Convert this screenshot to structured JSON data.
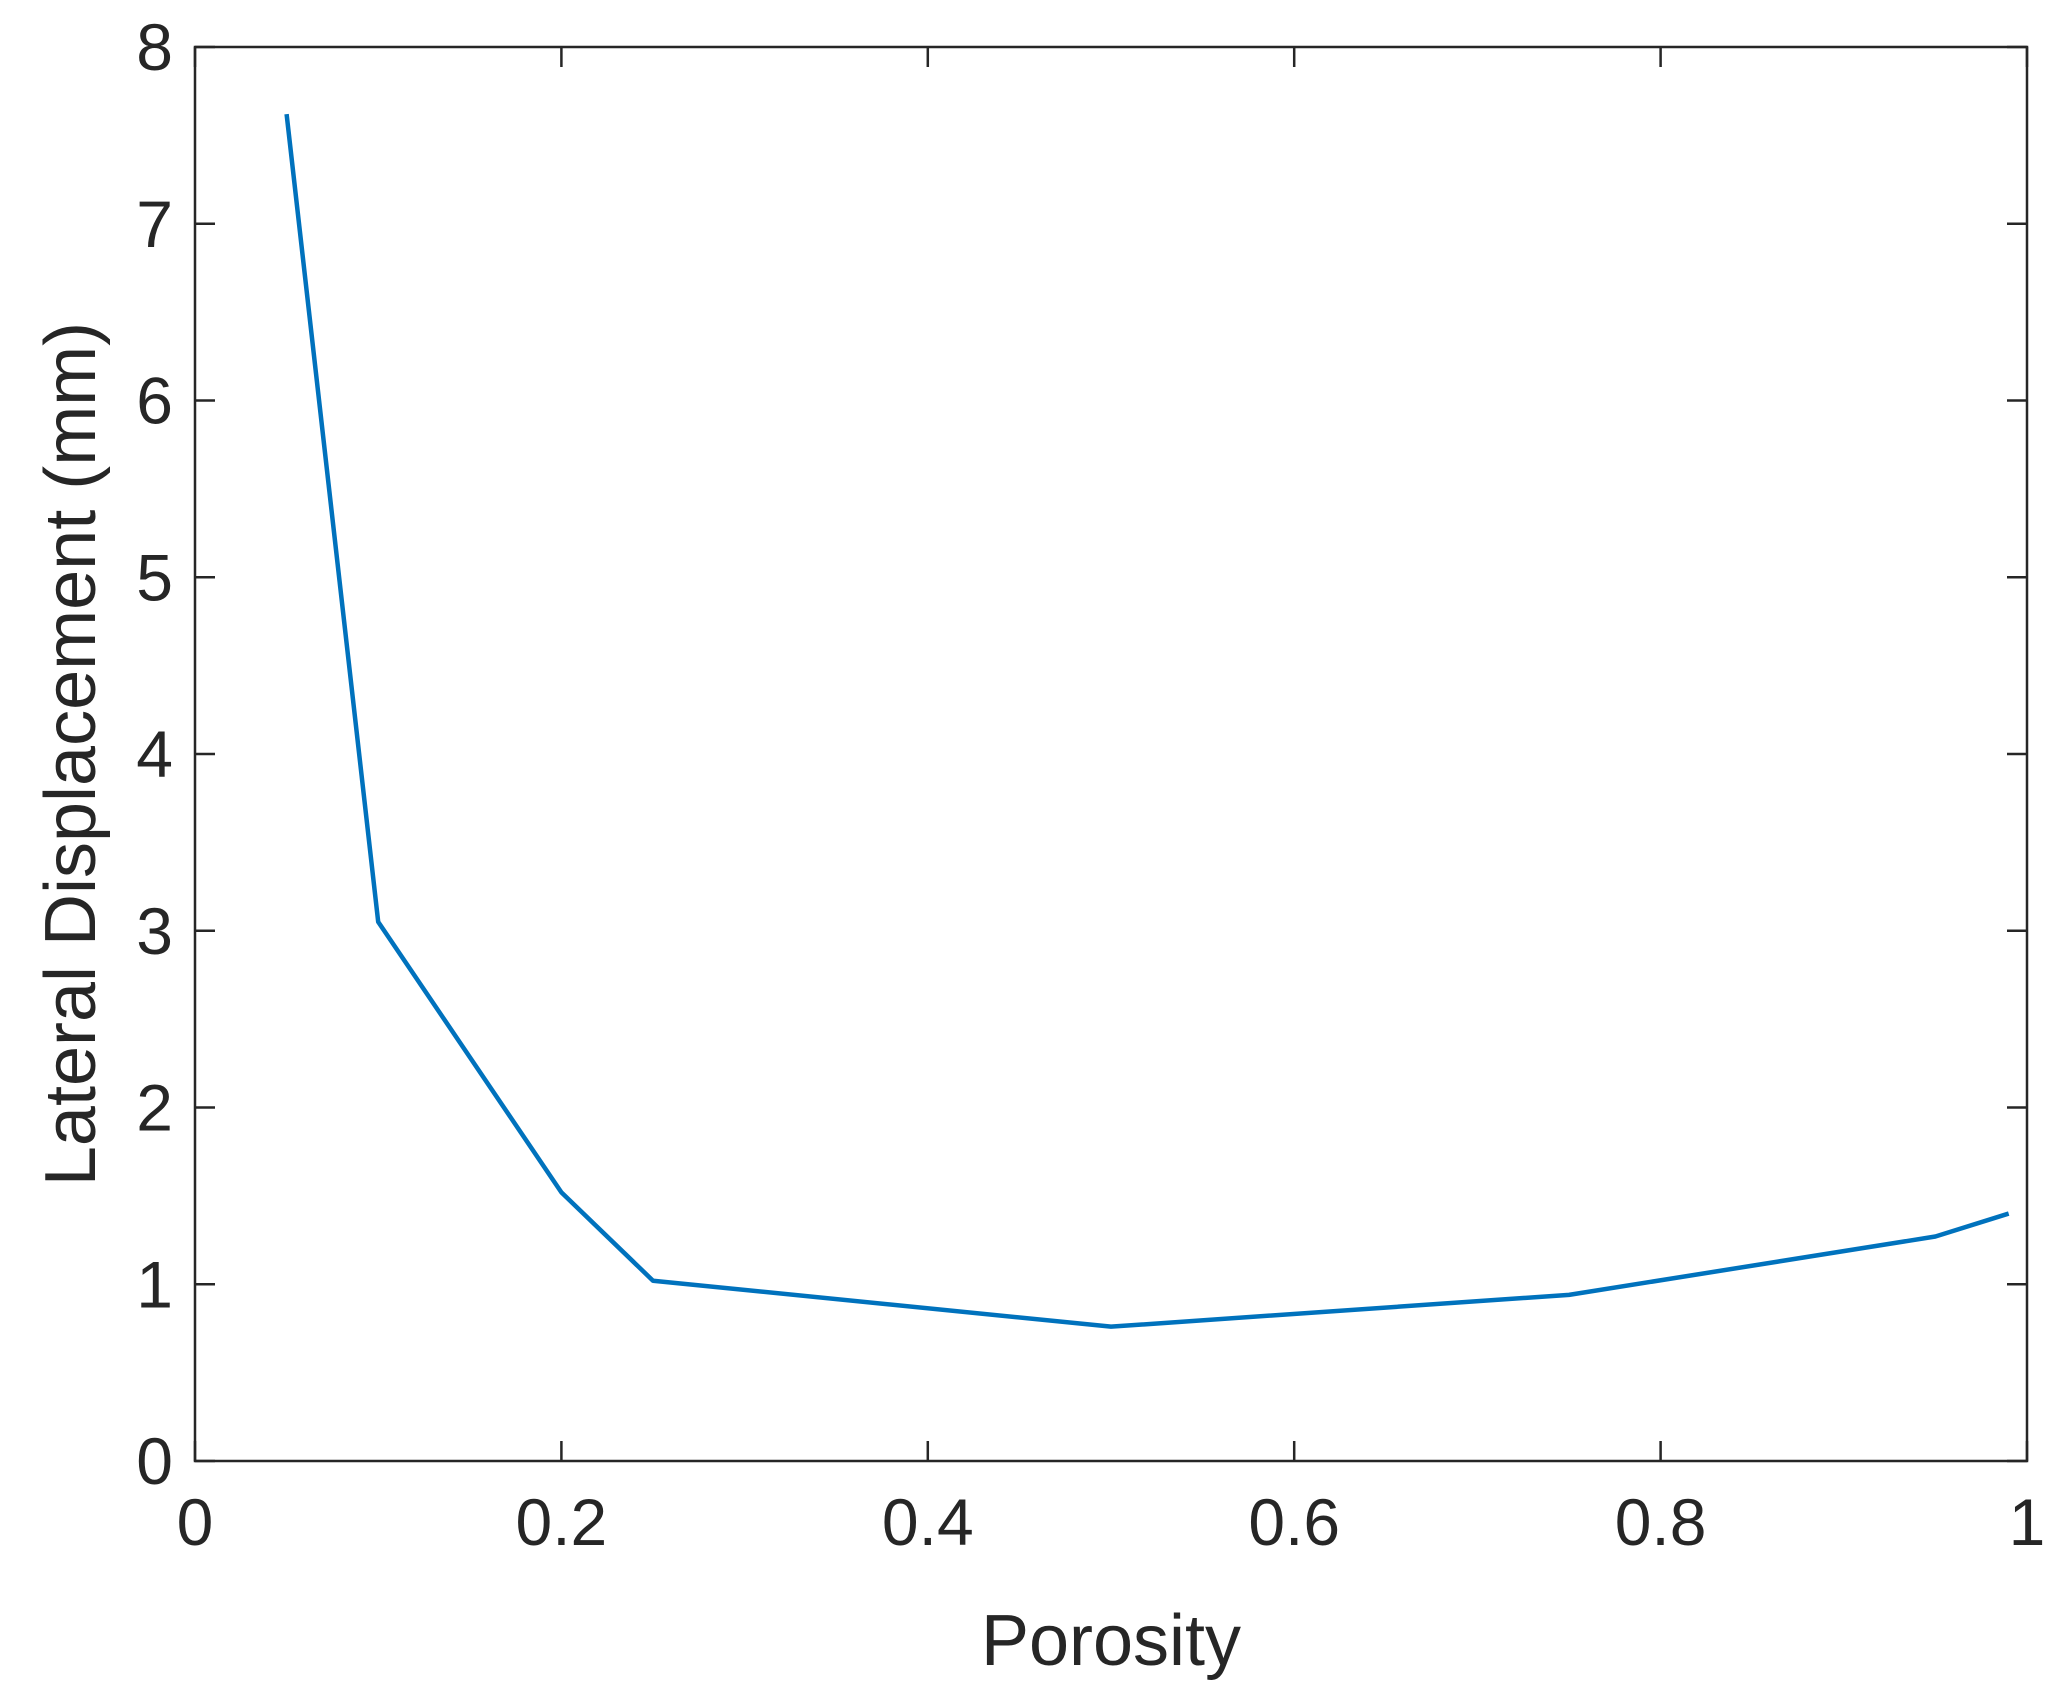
{
  "chart_data": {
    "type": "line",
    "xlabel": "Porosity",
    "ylabel": "Lateral Displacement (mm)",
    "x": [
      0.05,
      0.1,
      0.2,
      0.25,
      0.5,
      0.75,
      0.95,
      0.99
    ],
    "series": [
      {
        "color": "#0072BD",
        "values": [
          7.62,
          3.05,
          1.52,
          1.02,
          0.76,
          0.94,
          1.27,
          1.4
        ]
      }
    ],
    "xlim": [
      0,
      1
    ],
    "xticks": [
      0,
      0.2,
      0.4,
      0.6,
      0.8,
      1
    ],
    "ylim": [
      0,
      8
    ],
    "yticks": [
      0,
      1,
      2,
      3,
      4,
      5,
      6,
      7,
      8
    ],
    "grid": false
  }
}
